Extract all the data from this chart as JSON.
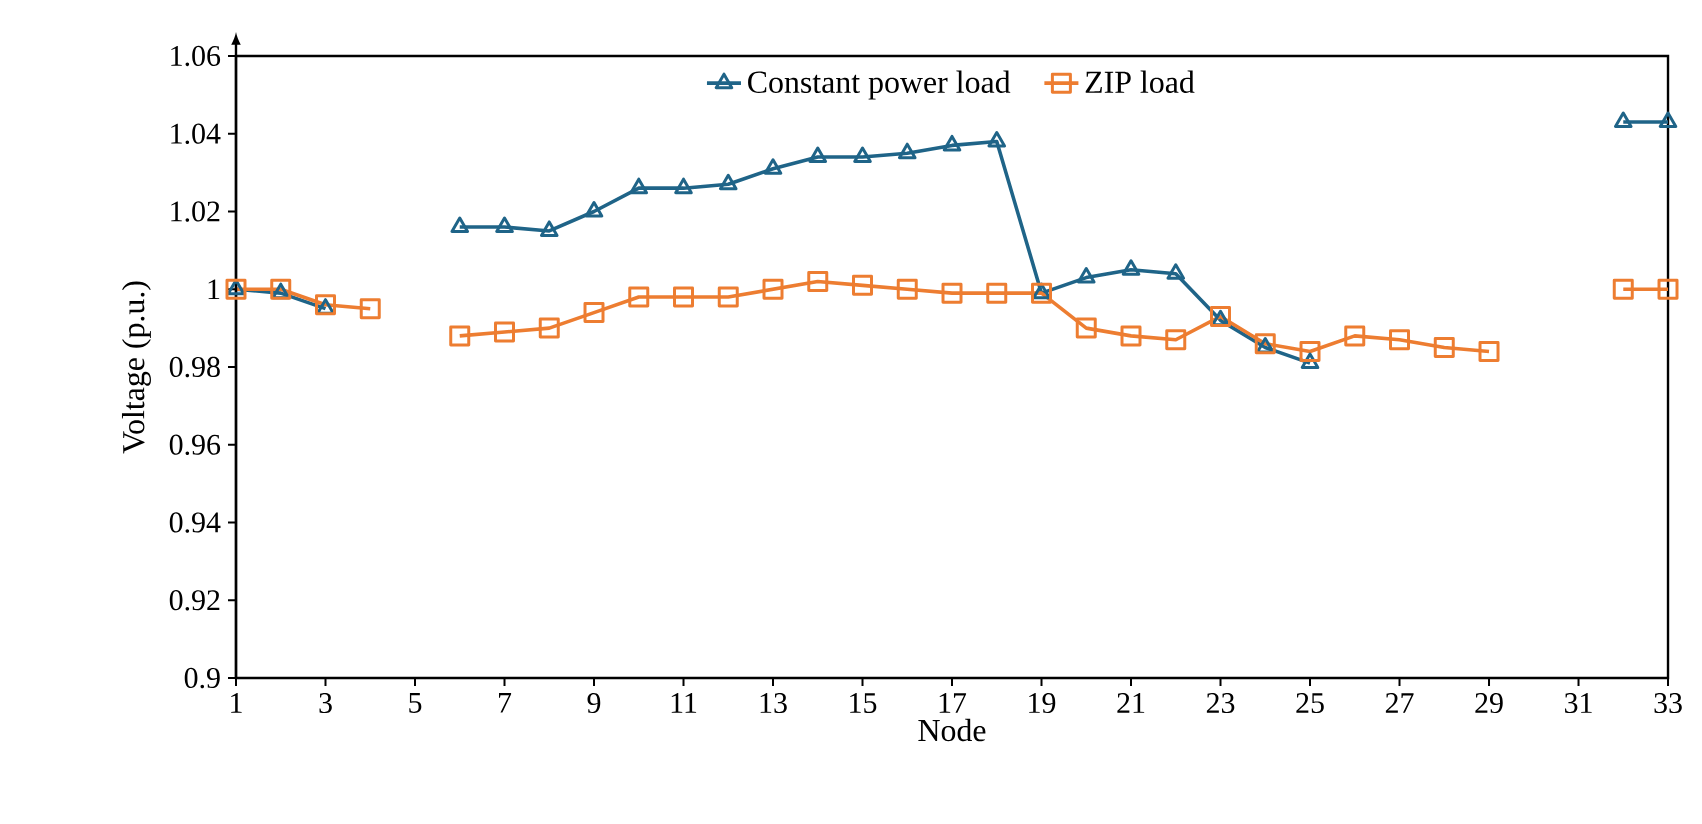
{
  "chart_data": {
    "type": "line",
    "xlabel": "Node",
    "ylabel": "Voltage (p.u.)",
    "x": [
      1,
      2,
      3,
      4,
      5,
      6,
      7,
      8,
      9,
      10,
      11,
      12,
      13,
      14,
      15,
      16,
      17,
      18,
      19,
      20,
      21,
      22,
      23,
      24,
      25,
      26,
      27,
      28,
      29,
      30,
      31,
      32,
      33
    ],
    "series": [
      {
        "name": "Constant power load",
        "color": "#1f6488",
        "marker": "triangle",
        "values": [
          1.0,
          0.999,
          0.995,
          null,
          null,
          1.016,
          1.016,
          1.015,
          1.02,
          1.026,
          1.026,
          1.027,
          1.031,
          1.034,
          1.034,
          1.035,
          1.037,
          1.038,
          0.999,
          1.003,
          1.005,
          1.004,
          0.992,
          0.985,
          0.981,
          null,
          null,
          null,
          null,
          null,
          null,
          1.043,
          1.043
        ]
      },
      {
        "name": "ZIP load",
        "color": "#ed7d31",
        "marker": "square",
        "values": [
          1.0,
          1.0,
          0.996,
          0.995,
          null,
          0.988,
          0.989,
          0.99,
          0.994,
          0.998,
          0.998,
          0.998,
          1.0,
          1.002,
          1.001,
          1.0,
          0.999,
          0.999,
          0.999,
          0.99,
          0.988,
          0.987,
          0.993,
          0.986,
          0.984,
          0.988,
          0.987,
          0.985,
          0.984,
          null,
          null,
          1.0,
          1.0
        ]
      }
    ],
    "xlim": [
      1,
      33
    ],
    "ylim": [
      0.9,
      1.06
    ],
    "xticks": [
      1,
      3,
      5,
      7,
      9,
      11,
      13,
      15,
      17,
      19,
      21,
      23,
      25,
      27,
      29,
      31,
      33
    ],
    "yticks": [
      0.9,
      0.92,
      0.94,
      0.96,
      0.98,
      1,
      1.02,
      1.04,
      1.06
    ],
    "legend": "top",
    "grid": false
  }
}
